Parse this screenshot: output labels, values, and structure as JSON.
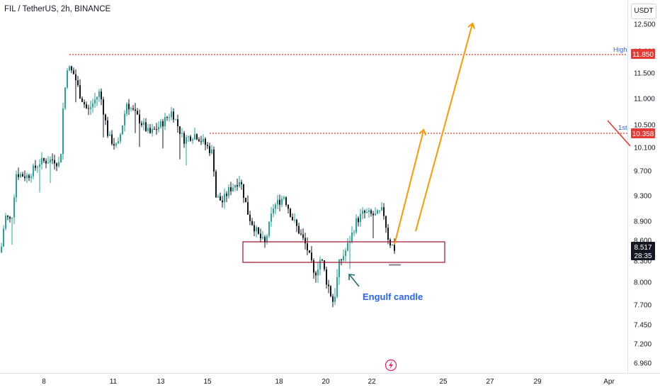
{
  "header": {
    "symbol": "FIL / TetherUS, 2h, BINANCE",
    "currency_unit": "USDT"
  },
  "colors": {
    "up": "#26a69a",
    "down": "#131722",
    "level_line": "#e53935",
    "arrow": "#ff9800",
    "zone": "#a50e2d",
    "price_label_bg": "#131722",
    "annotation_text": "#2962ff"
  },
  "chart_data": {
    "type": "candlestick",
    "title": "FIL / TetherUS, 2h, BINANCE",
    "y_axis": {
      "position": "right",
      "ticks": [
        12.5,
        12.0,
        11.5,
        11.0,
        10.5,
        10.1,
        9.7,
        9.3,
        8.9,
        8.6,
        8.3,
        8.0,
        7.7,
        7.45,
        7.2,
        6.96
      ],
      "tick_labels": [
        "12.500",
        "12.000",
        "11.500",
        "11.000",
        "10.500",
        "10.100",
        "9.700",
        "9.300",
        "8.900",
        "8.600",
        "8.300",
        "8.000",
        "7.700",
        "7.450",
        "7.200",
        "6.960"
      ]
    },
    "x_axis": {
      "tick_labels": [
        "8",
        "11",
        "13",
        "15",
        "18",
        "20",
        "22",
        "25",
        "27",
        "29",
        "Apr"
      ]
    },
    "series": [
      {
        "type": "candles",
        "window": "Mar 7 – Mar 22",
        "first_close": 8.45,
        "high": 11.85,
        "low": 7.67,
        "last_close": 8.517
      }
    ],
    "price_levels": [
      {
        "tag": "High",
        "value": "11.850",
        "style": "dotted"
      },
      {
        "tag": "1st",
        "value": "10.358",
        "style": "dotted"
      }
    ],
    "current_price": {
      "value": "8.517",
      "countdown": "28:35"
    },
    "zones": [
      {
        "type": "rectangle",
        "price_top": 8.6,
        "price_bottom": 8.25
      }
    ],
    "annotations": [
      {
        "type": "text",
        "text": "Engulf candle"
      },
      {
        "type": "arrow",
        "from_price": 8.55,
        "to_price": 10.358
      },
      {
        "type": "arrow",
        "from_price": 8.75,
        "to_price": 12.5
      }
    ]
  }
}
